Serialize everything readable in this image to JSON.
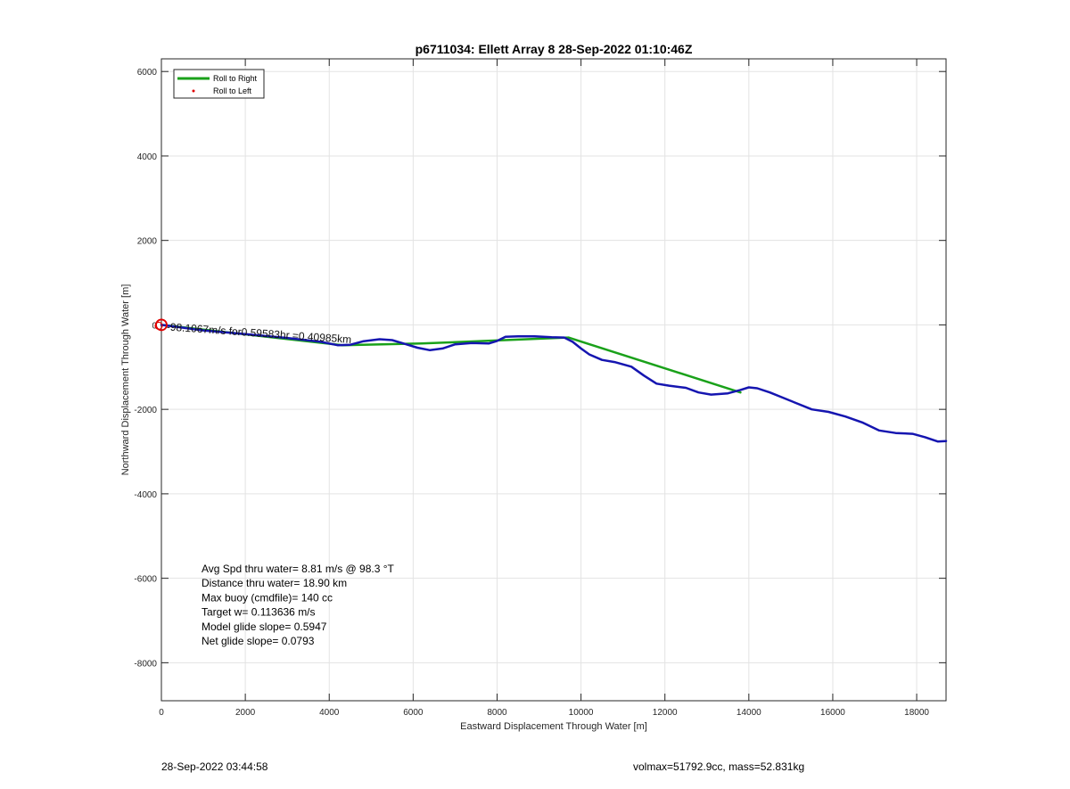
{
  "chart_data": {
    "type": "line",
    "title": "p6711034: Ellett Array 8 28-Sep-2022 01:10:46Z",
    "xlabel": "Eastward Displacement Through Water [m]",
    "ylabel": "Northward Displacement Through Water [m]",
    "xlim": [
      0,
      18700
    ],
    "ylim": [
      -8900,
      6300
    ],
    "xticks": [
      0,
      2000,
      4000,
      6000,
      8000,
      10000,
      12000,
      14000,
      16000,
      18000
    ],
    "yticks": [
      6000,
      4000,
      2000,
      0,
      -2000,
      -4000,
      -6000,
      -8000
    ],
    "grid": true,
    "legend_location": "top-left",
    "legend": [
      {
        "label": "Roll to Right",
        "color": "#1aa11a",
        "style": "line"
      },
      {
        "label": "Roll to Left",
        "color": "#e00000",
        "style": "dot"
      }
    ],
    "series": [
      {
        "name": "Roll to Right",
        "color": "#1aa11a",
        "x": [
          0,
          4300,
          6200,
          9700,
          13800
        ],
        "y": [
          0,
          -480,
          -440,
          -300,
          -1600
        ]
      },
      {
        "color": "#1515b0",
        "x": [
          0,
          1000,
          2000,
          3000,
          3800,
          4200,
          4500,
          4800,
          5200,
          5500,
          5800,
          6100,
          6400,
          6700,
          7000,
          7400,
          7800,
          8000,
          8200,
          8500,
          8900,
          9300,
          9600,
          9800,
          10000,
          10200,
          10500,
          10800,
          11200,
          11500,
          11800,
          12100,
          12500,
          12800,
          13100,
          13500,
          13800,
          14000,
          14200,
          14500,
          14800,
          15100,
          15500,
          15900,
          16300,
          16700,
          17100,
          17500,
          17900,
          18200,
          18500,
          18700
        ],
        "y": [
          0,
          -130,
          -220,
          -310,
          -400,
          -480,
          -470,
          -390,
          -340,
          -360,
          -450,
          -540,
          -600,
          -560,
          -460,
          -430,
          -440,
          -380,
          -280,
          -270,
          -270,
          -290,
          -300,
          -400,
          -560,
          -700,
          -830,
          -880,
          -990,
          -1200,
          -1390,
          -1440,
          -1490,
          -1600,
          -1650,
          -1620,
          -1540,
          -1480,
          -1500,
          -1600,
          -1720,
          -1840,
          -2000,
          -2060,
          -2170,
          -2310,
          -2500,
          -2560,
          -2580,
          -2660,
          -2760,
          -2750
        ]
      }
    ],
    "start_marker": {
      "x": 0,
      "y": 0,
      "color": "#e00000"
    },
    "overlap_label": "-98.1067m/s for0.59583hr =0.40985km",
    "annotations": [
      "Avg Spd thru water=  8.81 m/s @  98.3 °T",
      "Distance thru water= 18.90 km",
      "Max buoy (cmdfile)= 140 cc",
      "Target w= 0.113636 m/s",
      "Model glide slope= 0.5947",
      "Net glide slope= 0.0793"
    ]
  },
  "footer": {
    "left": "28-Sep-2022 03:44:58",
    "right": "volmax=51792.9cc, mass=52.831kg"
  }
}
